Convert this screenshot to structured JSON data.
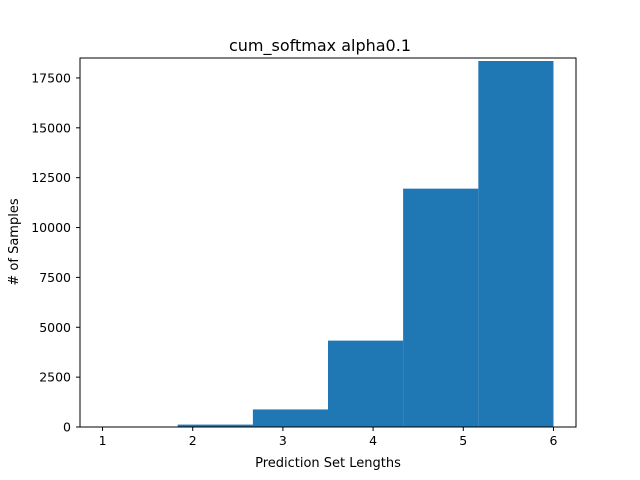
{
  "chart_data": {
    "type": "bar",
    "title": "cum_softmax alpha0.1",
    "xlabel": "Prediction Set Lengths",
    "ylabel": "# of Samples",
    "x_ticks": [
      "1",
      "2",
      "3",
      "4",
      "5",
      "6"
    ],
    "y_ticks": [
      "0",
      "2500",
      "5000",
      "7500",
      "10000",
      "12500",
      "15000",
      "17500"
    ],
    "xlim": [
      0.75,
      6.25
    ],
    "ylim": [
      0,
      18500
    ],
    "bar_color": "#1f77b4",
    "grid": false,
    "legend": "none",
    "bins": [
      {
        "x0": 1.0,
        "x1": 1.833,
        "value": 0
      },
      {
        "x0": 1.833,
        "x1": 2.667,
        "value": 120
      },
      {
        "x0": 2.667,
        "x1": 3.5,
        "value": 880
      },
      {
        "x0": 3.5,
        "x1": 4.333,
        "value": 4330
      },
      {
        "x0": 4.333,
        "x1": 5.167,
        "value": 11950
      },
      {
        "x0": 5.167,
        "x1": 6.0,
        "value": 18350
      }
    ]
  }
}
